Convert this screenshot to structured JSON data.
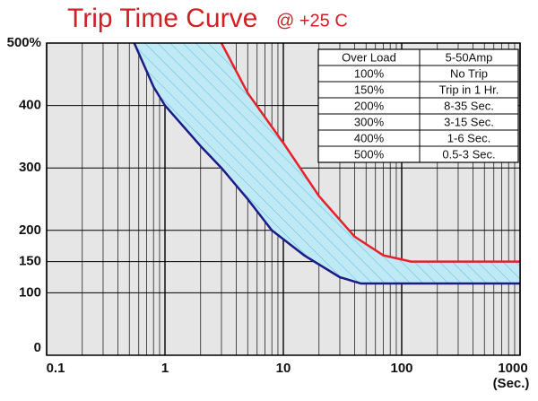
{
  "chart_data": {
    "type": "line",
    "title": "Trip Time Curve",
    "subtitle": "@ +25 C",
    "xlabel": "(Sec.)",
    "xlim": [
      0.1,
      1000
    ],
    "xticks": [
      0.1,
      1,
      10,
      100,
      1000
    ],
    "xscale": "log",
    "ylim": [
      0,
      500
    ],
    "yticks": [
      0,
      100,
      150,
      200,
      300,
      400,
      {
        "value": 500,
        "label": "500%"
      }
    ],
    "grid": true,
    "minor_grid": true,
    "band_fill": "#bfeaf5",
    "series": [
      {
        "color": "#1c1a88",
        "x": [
          0.55,
          0.8,
          1,
          2,
          3,
          5,
          8,
          15,
          30,
          45,
          1000
        ],
        "values": [
          500,
          430,
          400,
          335,
          300,
          250,
          200,
          160,
          125,
          115,
          115
        ]
      },
      {
        "color": "#e8202a",
        "x": [
          3,
          5,
          10,
          20,
          40,
          70,
          120,
          1000
        ],
        "values": [
          500,
          420,
          340,
          255,
          190,
          160,
          150,
          150
        ]
      }
    ],
    "table": {
      "header": [
        "Over Load",
        "5-50Amp"
      ],
      "rows": [
        [
          "100%",
          "No Trip"
        ],
        [
          "150%",
          "Trip in 1 Hr."
        ],
        [
          "200%",
          "8-35 Sec."
        ],
        [
          "300%",
          "3-15 Sec."
        ],
        [
          "400%",
          "1-6 Sec."
        ],
        [
          "500%",
          "0.5-3 Sec."
        ]
      ]
    }
  }
}
